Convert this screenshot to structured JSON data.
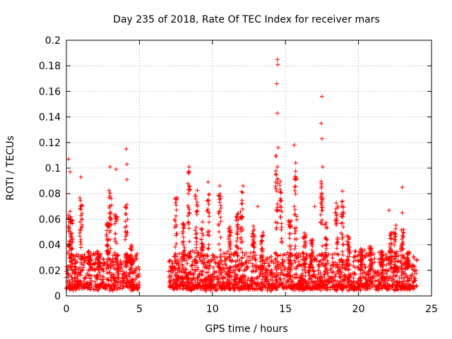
{
  "chart_data": {
    "type": "scatter",
    "title": "Day 235 of 2018, Rate Of TEC Index for receiver mars",
    "xlabel": "GPS time / hours",
    "ylabel": "ROTI / TECUs",
    "xlim": [
      0,
      25
    ],
    "ylim": [
      0,
      0.2
    ],
    "xticks": [
      0,
      5,
      10,
      15,
      20,
      25
    ],
    "yticks": [
      0,
      0.02,
      0.04,
      0.06,
      0.08,
      0.1,
      0.12,
      0.14,
      0.16,
      0.18,
      0.2
    ],
    "grid": true,
    "marker": "+",
    "color": "#ff0000",
    "data_gap_hours": [
      5.0,
      7.0
    ],
    "notable_points": [
      {
        "x": 0.15,
        "y": 0.107
      },
      {
        "x": 0.25,
        "y": 0.097
      },
      {
        "x": 1.0,
        "y": 0.093
      },
      {
        "x": 3.0,
        "y": 0.101
      },
      {
        "x": 3.4,
        "y": 0.099
      },
      {
        "x": 4.1,
        "y": 0.115
      },
      {
        "x": 4.15,
        "y": 0.103
      },
      {
        "x": 4.15,
        "y": 0.091
      },
      {
        "x": 8.4,
        "y": 0.101
      },
      {
        "x": 9.7,
        "y": 0.089
      },
      {
        "x": 10.5,
        "y": 0.086
      },
      {
        "x": 12.1,
        "y": 0.086
      },
      {
        "x": 13.1,
        "y": 0.07
      },
      {
        "x": 14.45,
        "y": 0.185
      },
      {
        "x": 14.48,
        "y": 0.181
      },
      {
        "x": 14.4,
        "y": 0.166
      },
      {
        "x": 14.45,
        "y": 0.143
      },
      {
        "x": 14.5,
        "y": 0.116
      },
      {
        "x": 15.6,
        "y": 0.118
      },
      {
        "x": 15.7,
        "y": 0.104
      },
      {
        "x": 17.5,
        "y": 0.156
      },
      {
        "x": 17.45,
        "y": 0.135
      },
      {
        "x": 17.5,
        "y": 0.123
      },
      {
        "x": 17.55,
        "y": 0.101
      },
      {
        "x": 17.0,
        "y": 0.07
      },
      {
        "x": 18.9,
        "y": 0.082
      },
      {
        "x": 23.0,
        "y": 0.085
      },
      {
        "x": 22.1,
        "y": 0.067
      },
      {
        "x": 23.0,
        "y": 0.065
      }
    ],
    "bursts": [
      {
        "x": 0.2,
        "peak": 0.07
      },
      {
        "x": 0.35,
        "peak": 0.06
      },
      {
        "x": 1.0,
        "peak": 0.082
      },
      {
        "x": 1.6,
        "peak": 0.035
      },
      {
        "x": 2.2,
        "peak": 0.035
      },
      {
        "x": 2.8,
        "peak": 0.058
      },
      {
        "x": 3.0,
        "peak": 0.083
      },
      {
        "x": 3.4,
        "peak": 0.066
      },
      {
        "x": 4.1,
        "peak": 0.072
      },
      {
        "x": 4.4,
        "peak": 0.04
      },
      {
        "x": 7.5,
        "peak": 0.077
      },
      {
        "x": 8.0,
        "peak": 0.058
      },
      {
        "x": 8.4,
        "peak": 0.098
      },
      {
        "x": 8.9,
        "peak": 0.083
      },
      {
        "x": 9.3,
        "peak": 0.064
      },
      {
        "x": 9.7,
        "peak": 0.08
      },
      {
        "x": 10.5,
        "peak": 0.08
      },
      {
        "x": 11.2,
        "peak": 0.055
      },
      {
        "x": 11.7,
        "peak": 0.067
      },
      {
        "x": 12.0,
        "peak": 0.083
      },
      {
        "x": 12.8,
        "peak": 0.055
      },
      {
        "x": 13.4,
        "peak": 0.05
      },
      {
        "x": 14.4,
        "peak": 0.11
      },
      {
        "x": 14.7,
        "peak": 0.09
      },
      {
        "x": 15.3,
        "peak": 0.06
      },
      {
        "x": 15.7,
        "peak": 0.098
      },
      {
        "x": 16.3,
        "peak": 0.05
      },
      {
        "x": 16.8,
        "peak": 0.045
      },
      {
        "x": 17.5,
        "peak": 0.09
      },
      {
        "x": 17.8,
        "peak": 0.058
      },
      {
        "x": 18.5,
        "peak": 0.073
      },
      {
        "x": 18.9,
        "peak": 0.077
      },
      {
        "x": 19.3,
        "peak": 0.047
      },
      {
        "x": 20.2,
        "peak": 0.037
      },
      {
        "x": 20.8,
        "peak": 0.04
      },
      {
        "x": 21.6,
        "peak": 0.035
      },
      {
        "x": 22.2,
        "peak": 0.05
      },
      {
        "x": 22.5,
        "peak": 0.056
      },
      {
        "x": 23.0,
        "peak": 0.052
      },
      {
        "x": 23.4,
        "peak": 0.035
      }
    ]
  }
}
